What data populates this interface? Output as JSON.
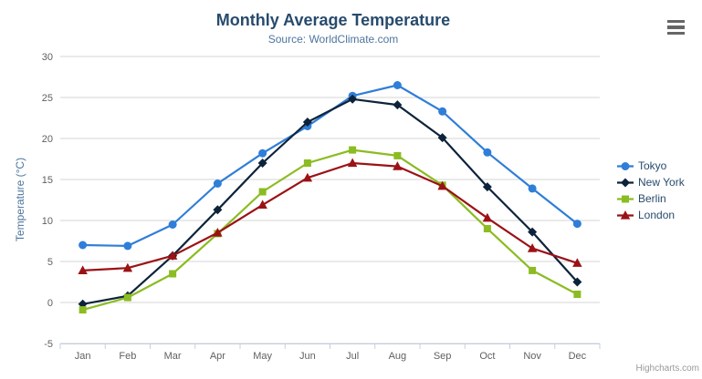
{
  "chart": {
    "title": "Monthly Average Temperature",
    "subtitle": "Source: WorldClimate.com",
    "credit": "Highcharts.com"
  },
  "icons": {
    "context_menu": "hamburger-menu-icon"
  },
  "palette": {
    "title_color": "#274b6d",
    "subtitle_color": "#4d759e",
    "axis_title_color": "#4d759e",
    "tick_label_color": "#606060",
    "grid_color": "#d6d6d6",
    "axis_line_color": "#c0d0e0",
    "legend_text_color": "#274b6d",
    "menu_icon_color": "#666666",
    "credit_color": "#999999"
  },
  "chart_data": {
    "type": "line",
    "title": "Monthly Average Temperature",
    "subtitle": "Source: WorldClimate.com",
    "xlabel": "",
    "ylabel": "Temperature (°C)",
    "ylim": [
      -5,
      30
    ],
    "y_tick_step": 5,
    "grid": true,
    "legend_position": "right",
    "categories": [
      "Jan",
      "Feb",
      "Mar",
      "Apr",
      "May",
      "Jun",
      "Jul",
      "Aug",
      "Sep",
      "Oct",
      "Nov",
      "Dec"
    ],
    "series": [
      {
        "name": "Tokyo",
        "color": "#2f7ed8",
        "marker": "circle",
        "values": [
          7.0,
          6.9,
          9.5,
          14.5,
          18.2,
          21.5,
          25.2,
          26.5,
          23.3,
          18.3,
          13.9,
          9.6
        ]
      },
      {
        "name": "New York",
        "color": "#0d233a",
        "marker": "diamond",
        "values": [
          -0.2,
          0.8,
          5.7,
          11.3,
          17.0,
          22.0,
          24.8,
          24.1,
          20.1,
          14.1,
          8.6,
          2.5
        ]
      },
      {
        "name": "Berlin",
        "color": "#8bbc21",
        "marker": "square",
        "values": [
          -0.9,
          0.6,
          3.5,
          8.4,
          13.5,
          17.0,
          18.6,
          17.9,
          14.3,
          9.0,
          3.9,
          1.0
        ]
      },
      {
        "name": "London",
        "color": "#9b1216",
        "marker": "triangle",
        "values": [
          3.9,
          4.2,
          5.7,
          8.5,
          11.9,
          15.2,
          17.0,
          16.6,
          14.2,
          10.3,
          6.6,
          4.8
        ]
      }
    ]
  }
}
